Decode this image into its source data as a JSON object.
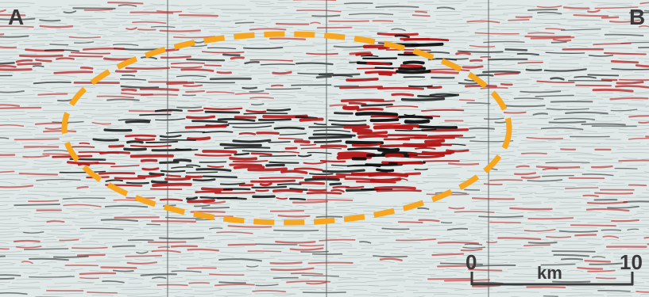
{
  "labels": {
    "left": "A",
    "right": "B"
  },
  "scale_bar": {
    "start": "0",
    "end": "10",
    "unit": "km"
  },
  "colors": {
    "background": "#dfe8e6",
    "positive_amplitude": "#b01616",
    "negative_amplitude": "#0f0f0f",
    "highlight_outline": "#f5a623",
    "trace_lines": "#555555",
    "text": "#3a3a3a"
  }
}
